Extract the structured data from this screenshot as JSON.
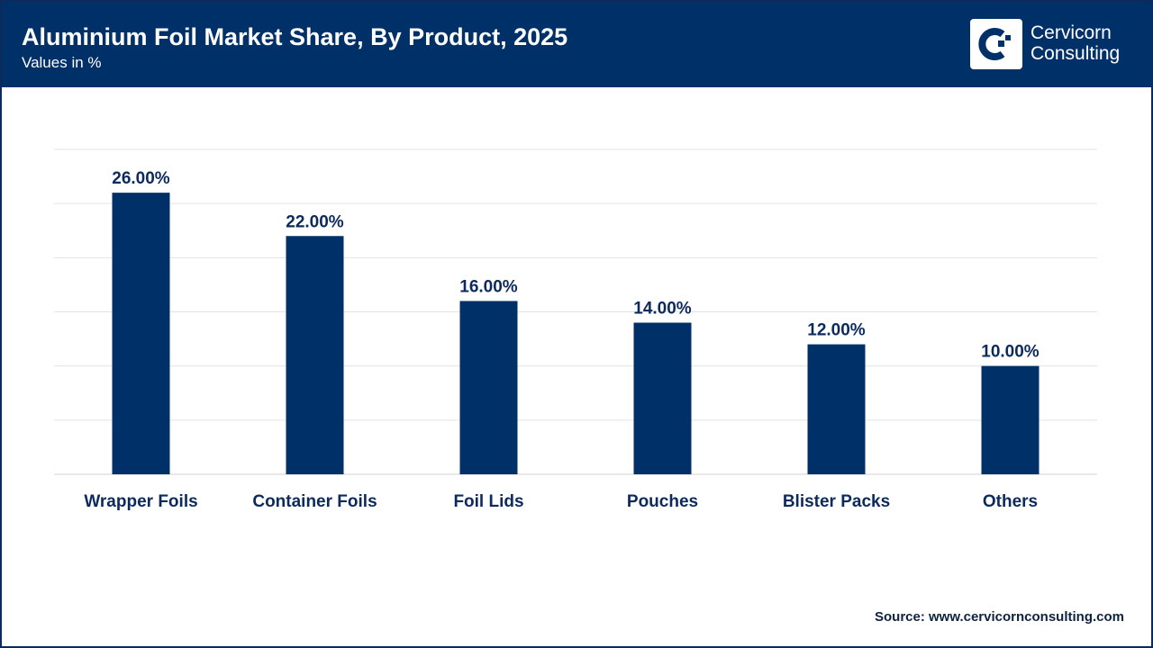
{
  "header": {
    "title": "Aluminium Foil Market Share, By Product, 2025",
    "subtitle": "Values in %"
  },
  "logo": {
    "line1": "Cervicorn",
    "line2": "Consulting"
  },
  "source": "Source: www.cervicornconsulting.com",
  "colors": {
    "bar": "#003068",
    "header": "#003068",
    "grid": "#e3e3e3"
  },
  "chart_data": {
    "type": "bar",
    "categories": [
      "Wrapper Foils",
      "Container Foils",
      "Foil Lids",
      "Pouches",
      "Blister Packs",
      "Others"
    ],
    "values": [
      26,
      22,
      16,
      14,
      12,
      10
    ],
    "data_labels": [
      "26.00%",
      "22.00%",
      "16.00%",
      "14.00%",
      "12.00%",
      "10.00%"
    ],
    "ylim": [
      0,
      30
    ],
    "grid": true,
    "legend": "none"
  }
}
